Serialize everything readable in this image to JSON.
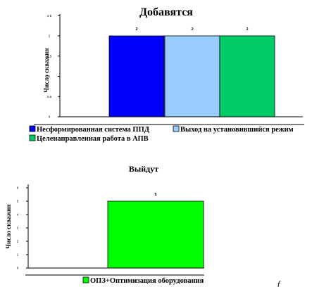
{
  "chart_data": [
    {
      "type": "bar",
      "title": "Добавятся",
      "ylabel": "Число скважин",
      "ylim": [
        0,
        2.5
      ],
      "yticks": [
        "0",
        "0,5",
        "1",
        "1,5",
        "2",
        "2,5"
      ],
      "grid": false,
      "legend_position": "bottom",
      "series": [
        {
          "name": "Несформированная система ППД",
          "values": [
            2
          ],
          "color": "#0000ff",
          "label": "2"
        },
        {
          "name": "Выход на установившийся режим",
          "values": [
            2
          ],
          "color": "#99ccff",
          "label": "2"
        },
        {
          "name": "Целенаправленная работа в АПВ",
          "values": [
            2
          ],
          "color": "#00cc66",
          "label": "2"
        }
      ]
    },
    {
      "type": "bar",
      "title": "Выйдут",
      "ylabel": "Число скважин",
      "ylim": [
        0,
        6
      ],
      "yticks": [
        "0",
        "1",
        "2",
        "3",
        "4",
        "5",
        "6"
      ],
      "grid": false,
      "legend_position": "bottom",
      "series": [
        {
          "name": "ОПЗ+Оптимизация оборудования",
          "values": [
            5
          ],
          "color": "#00ff00",
          "label": "5"
        }
      ]
    }
  ],
  "corner_mark": "ƒ"
}
